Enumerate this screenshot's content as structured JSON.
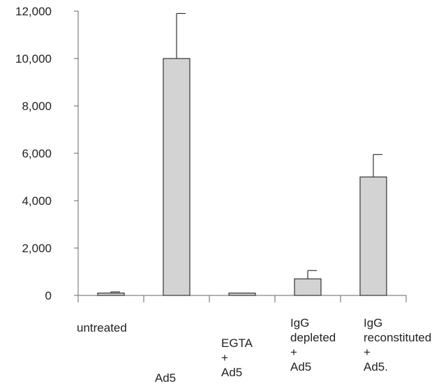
{
  "chart_data": {
    "type": "bar",
    "title": "",
    "xlabel": "",
    "ylabel": "",
    "ylim": [
      0,
      12000
    ],
    "yticks": [
      0,
      2000,
      4000,
      6000,
      8000,
      10000,
      12000
    ],
    "ytick_labels": [
      "0",
      "2,000",
      "4,000",
      "6,000",
      "8,000",
      "10,000",
      "12,000"
    ],
    "categories": [
      "untreated",
      "Ad5",
      "EGTA + Ad5",
      "IgG depleted + Ad5",
      "IgG reconstituted + Ad5."
    ],
    "category_label_lines": [
      [
        "untreated"
      ],
      [
        "Ad5"
      ],
      [
        "EGTA",
        "+",
        "Ad5"
      ],
      [
        "IgG",
        "depleted",
        "+",
        "Ad5"
      ],
      [
        "IgG",
        "reconstituted",
        "+",
        "Ad5."
      ]
    ],
    "values": [
      100,
      10000,
      100,
      700,
      5000
    ],
    "error_upper": [
      150,
      11900,
      100,
      1050,
      5950
    ],
    "grid": false,
    "legend": "none",
    "colors": {
      "bar_fill": "#d3d3d3",
      "bar_stroke": "#333333",
      "axis": "#666666"
    }
  }
}
